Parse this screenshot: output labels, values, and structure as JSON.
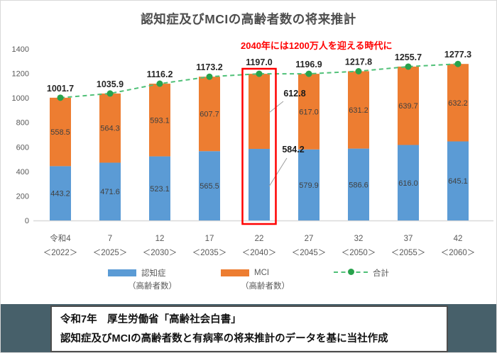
{
  "title": "認知症及びMCIの高齢者数の将来推計",
  "annotation": "2040年には1200万人を迎える時代に",
  "chart_data": {
    "type": "bar",
    "stacked": true,
    "title": "認知症及びMCIの高齢者数の将来推計",
    "categories_era": [
      "令和4",
      "7",
      "12",
      "17",
      "22",
      "27",
      "32",
      "37",
      "42"
    ],
    "categories_year": [
      "＜2022＞",
      "＜2025＞",
      "＜2030＞",
      "＜2035＞",
      "＜2040＞",
      "＜2045＞",
      "＜2050＞",
      "＜2055＞",
      "＜2060＞"
    ],
    "series": [
      {
        "name": "認知症",
        "name_sub": "（高齢者数）",
        "color": "#5B9BD5",
        "values": [
          443.2,
          471.6,
          523.1,
          565.5,
          584.2,
          579.9,
          586.6,
          616.0,
          645.1
        ]
      },
      {
        "name": "MCI",
        "name_sub": "（高齢者数）",
        "color": "#ED7D31",
        "values": [
          558.5,
          564.3,
          593.1,
          607.7,
          612.8,
          617.0,
          631.2,
          639.7,
          632.2
        ]
      }
    ],
    "line_series": {
      "name": "合計",
      "dash_color": "#4fc077",
      "marker_color": "#28a24c",
      "values": [
        1001.7,
        1035.9,
        1116.2,
        1173.2,
        1197.0,
        1196.9,
        1217.8,
        1255.7,
        1277.3
      ]
    },
    "ylim": [
      0,
      1400
    ],
    "yticks": [
      0,
      200,
      400,
      600,
      800,
      1000,
      1200,
      1400
    ],
    "grid": false,
    "legend_position": "bottom",
    "highlight": {
      "category_index": 4,
      "box_color": "#ff0000",
      "callout_labels": [
        "612.8",
        "584.2"
      ]
    }
  },
  "footer": {
    "line1": "令和7年　厚生労働省「高齢社会白書」",
    "line2": "認知症及びMCIの高齢者数と有病率の将来推計のデータを基に当社作成"
  }
}
